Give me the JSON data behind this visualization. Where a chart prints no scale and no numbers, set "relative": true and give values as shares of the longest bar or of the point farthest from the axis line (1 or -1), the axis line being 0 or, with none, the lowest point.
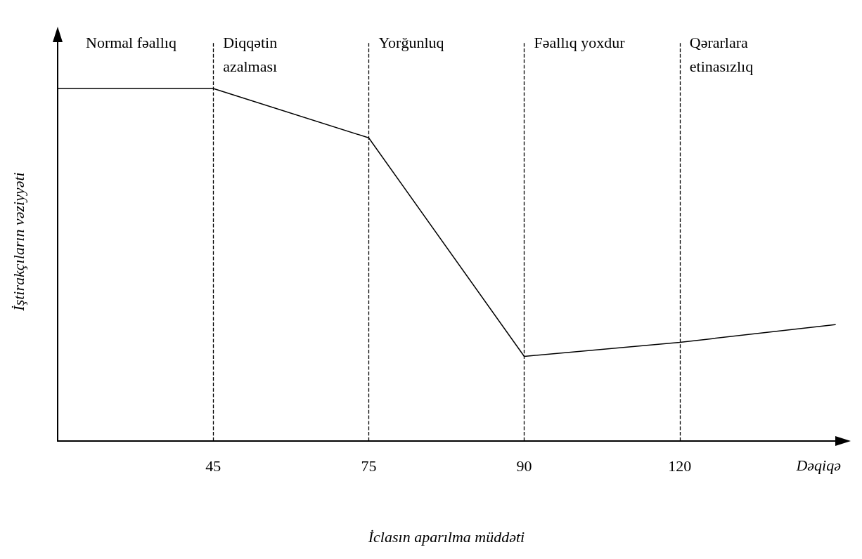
{
  "chart_data": {
    "type": "line",
    "relative": true,
    "xlabel": "İclasın aparılma müddəti",
    "ylabel": "İştirakçıların vəziyyəti",
    "categories": [
      null,
      "45",
      "75",
      "90",
      "120",
      null
    ],
    "series": [
      {
        "color": "#000000",
        "values": [
          1,
          1,
          0.86,
          0.24,
          0.28,
          0.33
        ]
      }
    ],
    "marker": "none",
    "line_style": "solid",
    "grid": false,
    "ref_lines": [
      {
        "axis": "x",
        "value": "45",
        "line_style": "dashed",
        "color": "#000000"
      },
      {
        "axis": "x",
        "value": "75",
        "line_style": "dashed",
        "color": "#000000"
      },
      {
        "axis": "x",
        "value": "90",
        "line_style": "dashed",
        "color": "#000000"
      },
      {
        "axis": "x",
        "value": "120",
        "line_style": "dashed",
        "color": "#000000"
      }
    ],
    "annotations": [
      "Normal fəallıq",
      "Diqqətin azalması",
      "Yorğunluq",
      "Fəallıq yoxdur",
      "Qərarlara etinasızlıq",
      "Dəqiqə"
    ]
  }
}
